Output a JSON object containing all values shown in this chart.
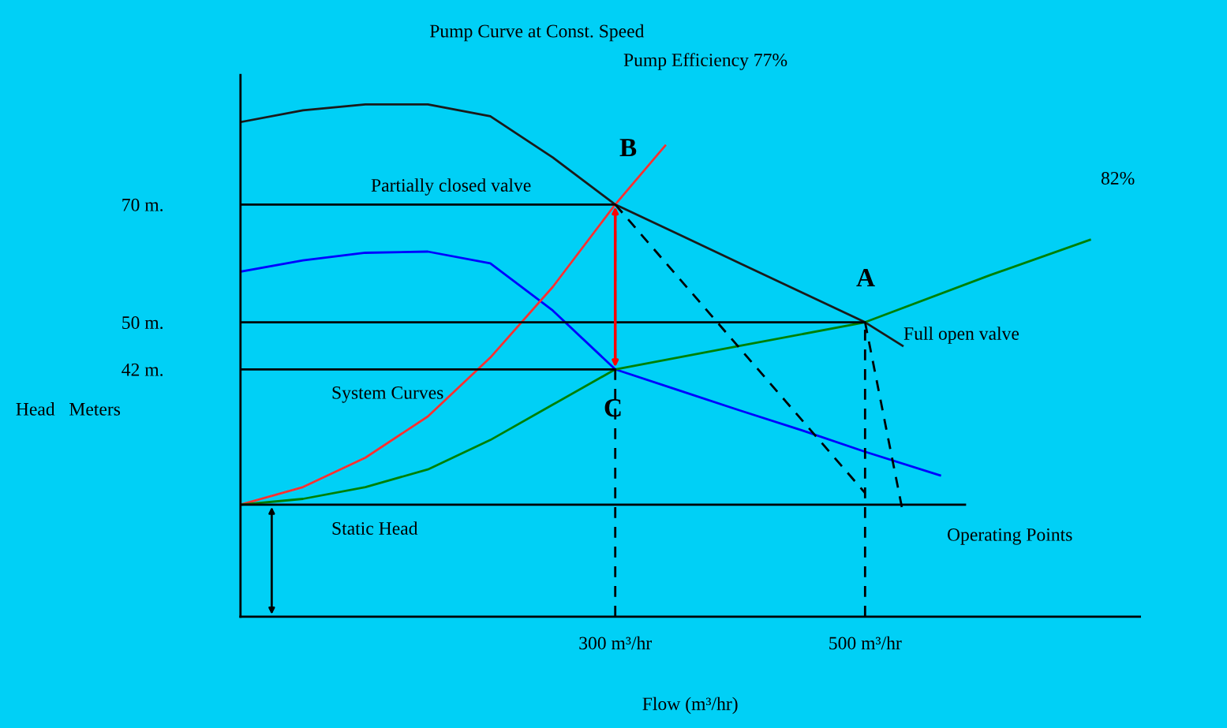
{
  "chart_data": {
    "type": "line",
    "title": "Pump Curve at Const. Speed",
    "xlabel": "Flow (m³/hr)",
    "ylabel": "Head   Meters",
    "xlim": [
      0,
      720
    ],
    "ylim": [
      0,
      92
    ],
    "xticks": [
      {
        "value": 300,
        "label": "300 m³/hr"
      },
      {
        "value": 500,
        "label": "500 m³/hr"
      }
    ],
    "yticks": [
      {
        "value": 42,
        "label": "42 m."
      },
      {
        "value": 50,
        "label": "50 m."
      },
      {
        "value": 70,
        "label": "70 m."
      }
    ],
    "grid": false,
    "marker": "none",
    "series": [
      {
        "color": "#1a1a1a",
        "line_style": "solid",
        "x": [
          0,
          50,
          100,
          150,
          200,
          250,
          300,
          350,
          400,
          450,
          500,
          530
        ],
        "values": [
          84,
          86,
          87,
          87,
          85,
          78,
          70,
          65,
          60,
          55,
          50,
          46
        ]
      },
      {
        "color": "#0000ff",
        "line_style": "solid",
        "x": [
          0,
          50,
          100,
          150,
          200,
          250,
          300,
          350,
          400,
          450,
          500,
          560
        ],
        "values": [
          58.6,
          60.5,
          61.8,
          62,
          60,
          52,
          42,
          38.5,
          35,
          31.6,
          28,
          24
        ]
      },
      {
        "color": "#ff3030",
        "line_style": "solid",
        "x": [
          0,
          50,
          100,
          150,
          200,
          250,
          300,
          340
        ],
        "values": [
          19,
          22,
          27,
          34,
          44,
          56,
          70,
          80
        ]
      },
      {
        "color": "#008000",
        "line_style": "solid",
        "x": [
          0,
          50,
          100,
          150,
          200,
          250,
          300,
          400,
          500,
          600,
          680
        ],
        "values": [
          19,
          20,
          22,
          25,
          30,
          36,
          42,
          46,
          50,
          58,
          64
        ]
      },
      {
        "color": "#000000",
        "line_style": "solid",
        "x": [
          0,
          300
        ],
        "values": [
          70,
          70
        ]
      },
      {
        "color": "#000000",
        "line_style": "solid",
        "x": [
          0,
          500
        ],
        "values": [
          50,
          50
        ]
      },
      {
        "color": "#000000",
        "line_style": "solid",
        "x": [
          0,
          300
        ],
        "values": [
          42,
          42
        ]
      },
      {
        "color": "#000000",
        "line_style": "solid",
        "x": [
          0,
          580
        ],
        "values": [
          19,
          19
        ]
      },
      {
        "color": "#000000",
        "line_style": "dashed",
        "x": [
          300,
          300
        ],
        "values": [
          0,
          70
        ]
      },
      {
        "color": "#000000",
        "line_style": "dashed",
        "x": [
          500,
          500
        ],
        "values": [
          0,
          50
        ]
      },
      {
        "color": "#000000",
        "line_style": "dashed",
        "x": [
          300,
          500
        ],
        "values": [
          70,
          21
        ]
      },
      {
        "color": "#000000",
        "line_style": "dashed",
        "x": [
          500,
          530
        ],
        "values": [
          50,
          18
        ]
      }
    ],
    "annotations": [
      "Pump Efficiency 77%",
      "B",
      "A",
      "C",
      "Partially closed valve",
      "Full open valve",
      "System Curves",
      "Static Head",
      "Operating Points",
      "82%"
    ]
  }
}
